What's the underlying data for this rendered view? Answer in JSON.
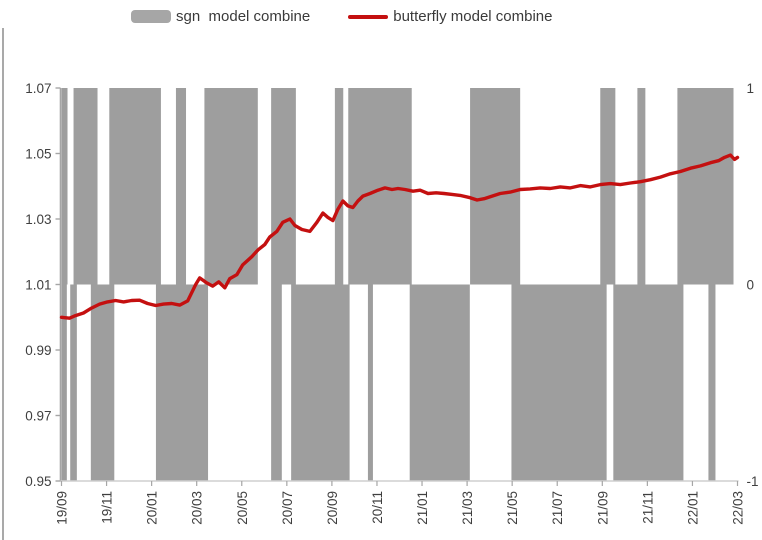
{
  "legend": {
    "items": [
      {
        "label": "sgn  model combine",
        "swatch": "bar",
        "color": "#a6a6a6"
      },
      {
        "label": "butterfly model combine",
        "swatch": "line",
        "color": "#c41010"
      }
    ]
  },
  "colors": {
    "bar_gray": "#9e9e9e",
    "line_red": "#c41010",
    "axis_line": "#a6a6a6",
    "bottom_axis": "#cfcfcf",
    "text": "#3f3f3f"
  },
  "chart_data": {
    "type": "bar+line",
    "title": "",
    "x_axis": {
      "tick_labels": [
        "19/09",
        "19/11",
        "20/01",
        "20/03",
        "20/05",
        "20/07",
        "20/09",
        "20/11",
        "21/01",
        "21/03",
        "21/05",
        "21/07",
        "21/09",
        "21/11",
        "22/01",
        "22/03"
      ],
      "label_rotation_deg": -90
    },
    "y_axis_left": {
      "tick_labels": [
        "1.07",
        "1.05",
        "1.03",
        "1.01",
        "0.99",
        "0.97",
        "0.95"
      ],
      "range": [
        0.95,
        1.07
      ]
    },
    "y_axis_right": {
      "tick_labels": [
        "1",
        "0",
        "-1"
      ],
      "range": [
        -1,
        1
      ]
    },
    "series": [
      {
        "name": "sgn model combine",
        "type": "bar",
        "axis": "right",
        "color": "#9e9e9e",
        "note": "segments are [start,end] fractions of the x-range where the sign signal is +1 (upper half) or -1 (lower half)",
        "positive_segments": [
          [
            0,
            0.0089
          ],
          [
            0.0178,
            0.0533
          ],
          [
            0.0707,
            0.1471
          ],
          [
            0.1693,
            0.1842
          ],
          [
            0.2114,
            0.2904
          ],
          [
            0.3101,
            0.3467
          ],
          [
            0.4044,
            0.4168
          ],
          [
            0.4242,
            0.5181
          ],
          [
            0.6044,
            0.6785
          ],
          [
            0.797,
            0.8193
          ],
          [
            0.8519,
            0.8637
          ],
          [
            0.9111,
            0.9941
          ]
        ],
        "negative_segments": [
          [
            0,
            0.0079
          ],
          [
            0.0129,
            0.0227
          ],
          [
            0.0434,
            0.0781
          ],
          [
            0.1397,
            0.2168
          ],
          [
            0.3101,
            0.3259
          ],
          [
            0.3397,
            0.4262
          ],
          [
            0.4533,
            0.4607
          ],
          [
            0.5151,
            0.604
          ],
          [
            0.6656,
            0.8064
          ],
          [
            0.8163,
            0.92
          ],
          [
            0.957,
            0.9674
          ]
        ]
      },
      {
        "name": "butterfly model combine",
        "type": "line",
        "axis": "left",
        "color": "#c41010",
        "points": [
          [
            0.0,
            1.0
          ],
          [
            0.0119,
            0.9997
          ],
          [
            0.0207,
            1.0005
          ],
          [
            0.0326,
            1.0013
          ],
          [
            0.0444,
            1.0028
          ],
          [
            0.0563,
            1.004
          ],
          [
            0.0681,
            1.0047
          ],
          [
            0.08,
            1.0051
          ],
          [
            0.0919,
            1.0047
          ],
          [
            0.1037,
            1.0051
          ],
          [
            0.1156,
            1.0052
          ],
          [
            0.1274,
            1.0042
          ],
          [
            0.1393,
            1.0036
          ],
          [
            0.1511,
            1.004
          ],
          [
            0.163,
            1.0042
          ],
          [
            0.1748,
            1.0037
          ],
          [
            0.1867,
            1.005
          ],
          [
            0.1985,
            1.01
          ],
          [
            0.2044,
            1.012
          ],
          [
            0.2148,
            1.0105
          ],
          [
            0.2237,
            1.0095
          ],
          [
            0.2326,
            1.0108
          ],
          [
            0.2415,
            1.009
          ],
          [
            0.2489,
            1.0118
          ],
          [
            0.2593,
            1.013
          ],
          [
            0.2681,
            1.016
          ],
          [
            0.2815,
            1.0185
          ],
          [
            0.2904,
            1.0205
          ],
          [
            0.3007,
            1.0222
          ],
          [
            0.3081,
            1.0245
          ],
          [
            0.3185,
            1.0262
          ],
          [
            0.3274,
            1.029
          ],
          [
            0.3378,
            1.03
          ],
          [
            0.3452,
            1.028
          ],
          [
            0.3556,
            1.0268
          ],
          [
            0.3674,
            1.0262
          ],
          [
            0.3778,
            1.029
          ],
          [
            0.3867,
            1.0318
          ],
          [
            0.3941,
            1.0305
          ],
          [
            0.4015,
            1.0295
          ],
          [
            0.4089,
            1.033
          ],
          [
            0.4163,
            1.0355
          ],
          [
            0.4237,
            1.034
          ],
          [
            0.4311,
            1.0335
          ],
          [
            0.4385,
            1.0355
          ],
          [
            0.4459,
            1.037
          ],
          [
            0.4563,
            1.0378
          ],
          [
            0.4681,
            1.0388
          ],
          [
            0.4785,
            1.0395
          ],
          [
            0.4889,
            1.039
          ],
          [
            0.4978,
            1.0393
          ],
          [
            0.5081,
            1.039
          ],
          [
            0.52,
            1.0385
          ],
          [
            0.5304,
            1.0388
          ],
          [
            0.5422,
            1.0378
          ],
          [
            0.5541,
            1.038
          ],
          [
            0.5659,
            1.0378
          ],
          [
            0.5778,
            1.0375
          ],
          [
            0.5896,
            1.0372
          ],
          [
            0.6044,
            1.0365
          ],
          [
            0.6148,
            1.0358
          ],
          [
            0.6252,
            1.0362
          ],
          [
            0.6341,
            1.0368
          ],
          [
            0.6489,
            1.0378
          ],
          [
            0.6637,
            1.0382
          ],
          [
            0.6785,
            1.039
          ],
          [
            0.6933,
            1.0392
          ],
          [
            0.7081,
            1.0395
          ],
          [
            0.723,
            1.0393
          ],
          [
            0.7378,
            1.0398
          ],
          [
            0.7526,
            1.0395
          ],
          [
            0.7674,
            1.0402
          ],
          [
            0.7822,
            1.0398
          ],
          [
            0.797,
            1.0405
          ],
          [
            0.8119,
            1.0408
          ],
          [
            0.8267,
            1.0405
          ],
          [
            0.8415,
            1.041
          ],
          [
            0.8563,
            1.0414
          ],
          [
            0.8711,
            1.042
          ],
          [
            0.8859,
            1.0428
          ],
          [
            0.9007,
            1.0438
          ],
          [
            0.9156,
            1.0445
          ],
          [
            0.9304,
            1.0455
          ],
          [
            0.9452,
            1.0462
          ],
          [
            0.96,
            1.0472
          ],
          [
            0.9719,
            1.0478
          ],
          [
            0.9807,
            1.0488
          ],
          [
            0.9896,
            1.0495
          ],
          [
            0.9956,
            1.0482
          ],
          [
            1.0,
            1.0488
          ]
        ]
      }
    ],
    "layout": {
      "grid": false,
      "legend_position": "top-center"
    }
  }
}
